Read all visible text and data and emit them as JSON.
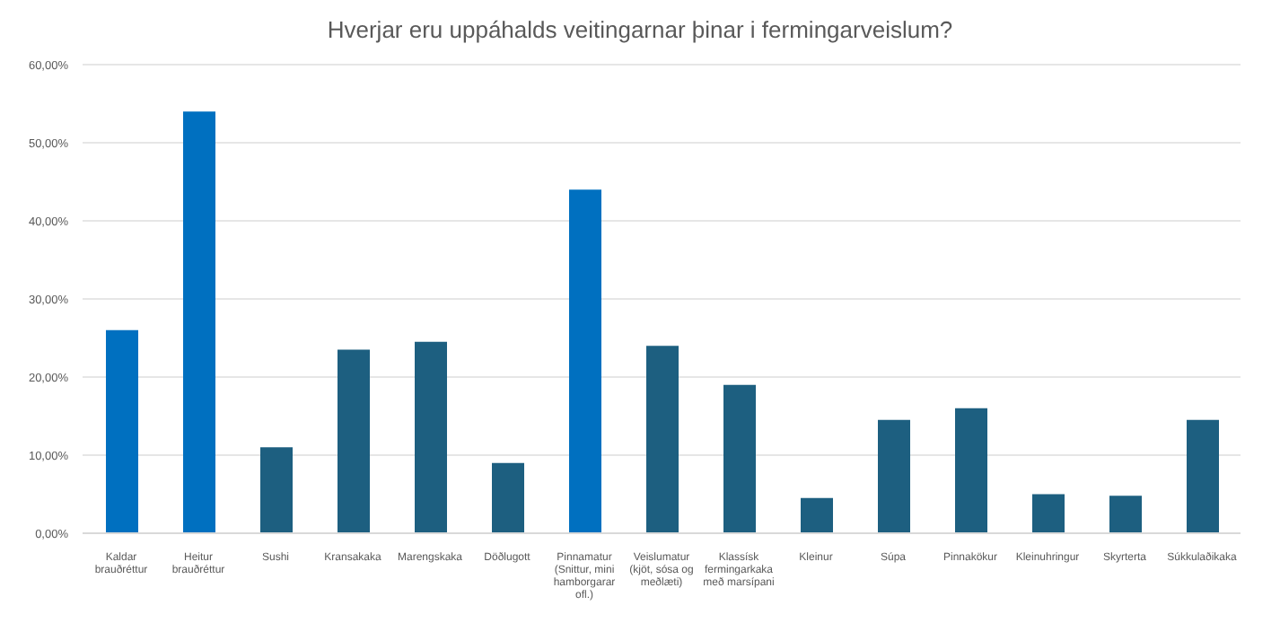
{
  "chart_data": {
    "type": "bar",
    "title": "Hverjar eru uppáhalds veitingarnar þinar i fermingarveislum?",
    "categories": [
      "Kaldar brauðréttur",
      "Heitur brauðréttur",
      "Sushi",
      "Kransakaka",
      "Marengskaka",
      "Döðlugott",
      "Pinnamatur (Snittur, mini hamborgarar ofl.)",
      "Veislumatur (kjöt, sósa og meðlæti)",
      "Klassísk fermingarkaka með marsípani",
      "Kleinur",
      "Súpa",
      "Pinnakökur",
      "Kleinuhringur",
      "Skyrterta",
      "Súkkulaðikaka"
    ],
    "values": [
      26,
      54,
      11,
      23.5,
      24.5,
      9,
      44,
      24,
      19,
      4.5,
      14.5,
      16,
      5,
      4.8,
      14.5
    ],
    "colors": [
      "#0070c0",
      "#0070c0",
      "#1d5f80",
      "#1d5f80",
      "#1d5f80",
      "#1d5f80",
      "#0070c0",
      "#1d5f80",
      "#1d5f80",
      "#1d5f80",
      "#1d5f80",
      "#1d5f80",
      "#1d5f80",
      "#1d5f80",
      "#1d5f80"
    ],
    "ylim": [
      0,
      60
    ],
    "yticks": [
      {
        "value": 0,
        "label": "0,00%"
      },
      {
        "value": 10,
        "label": "10,00%"
      },
      {
        "value": 20,
        "label": "20,00%"
      },
      {
        "value": 30,
        "label": "30,00%"
      },
      {
        "value": 40,
        "label": "40,00%"
      },
      {
        "value": 50,
        "label": "50,00%"
      },
      {
        "value": 60,
        "label": "60,00%"
      }
    ],
    "grid": "y"
  }
}
